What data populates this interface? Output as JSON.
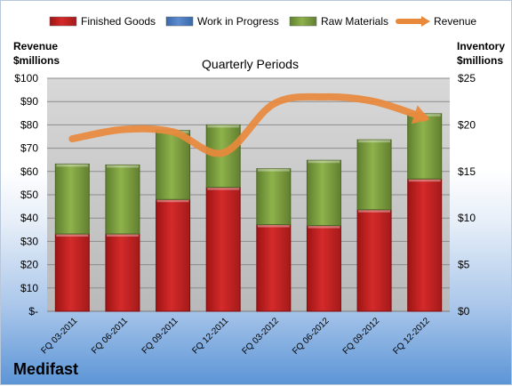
{
  "company": "Medifast",
  "chart_data": {
    "type": "bar",
    "stacked": true,
    "subtitle": "Quarterly Periods",
    "left_axis_label": [
      "Revenue",
      "$millions"
    ],
    "right_axis_label": [
      "Inventory",
      "$millions"
    ],
    "categories": [
      "FQ 03-2011",
      "FQ 06-2011",
      "FQ 09-2011",
      "FQ 12-2011",
      "FQ 03-2012",
      "FQ 06-2012",
      "FQ 09-2012",
      "FQ 12-2012"
    ],
    "left_axis": {
      "min": 0,
      "max": 100,
      "step": 10,
      "tick_labels": [
        "$-",
        "$10",
        "$20",
        "$30",
        "$40",
        "$50",
        "$60",
        "$70",
        "$80",
        "$90",
        "$100"
      ]
    },
    "right_axis": {
      "min": 0,
      "max": 25,
      "step": 5,
      "tick_labels": [
        "$0",
        "$5",
        "$10",
        "$15",
        "$20",
        "$25"
      ]
    },
    "legend": {
      "position": "top",
      "items": [
        {
          "name": "Finished Goods",
          "color": "#d42a2a",
          "kind": "bar"
        },
        {
          "name": "Work in Progress",
          "color": "#5b8bd0",
          "kind": "bar"
        },
        {
          "name": "Raw Materials",
          "color": "#8eb24b",
          "kind": "bar"
        },
        {
          "name": "Revenue",
          "color": "#e8893c",
          "kind": "line"
        }
      ]
    },
    "series": [
      {
        "name": "Finished Goods",
        "axis": "right",
        "values": [
          8.3,
          8.3,
          12.0,
          13.3,
          9.3,
          9.2,
          10.9,
          14.2
        ]
      },
      {
        "name": "Work in Progress",
        "axis": "right",
        "values": [
          0,
          0,
          0,
          0,
          0,
          0,
          0,
          0
        ]
      },
      {
        "name": "Raw Materials",
        "axis": "right",
        "values": [
          7.5,
          7.4,
          7.4,
          6.7,
          6.0,
          7.0,
          7.5,
          7.0
        ]
      },
      {
        "name": "Revenue",
        "axis": "left",
        "type": "line",
        "values": [
          74,
          78,
          77,
          68,
          89,
          92,
          90,
          83
        ]
      }
    ],
    "grid": true,
    "colors": {
      "plot_bg": "#c8c8c8",
      "grid": "#8c8c8c",
      "revenue_line": "#e8893c"
    }
  }
}
